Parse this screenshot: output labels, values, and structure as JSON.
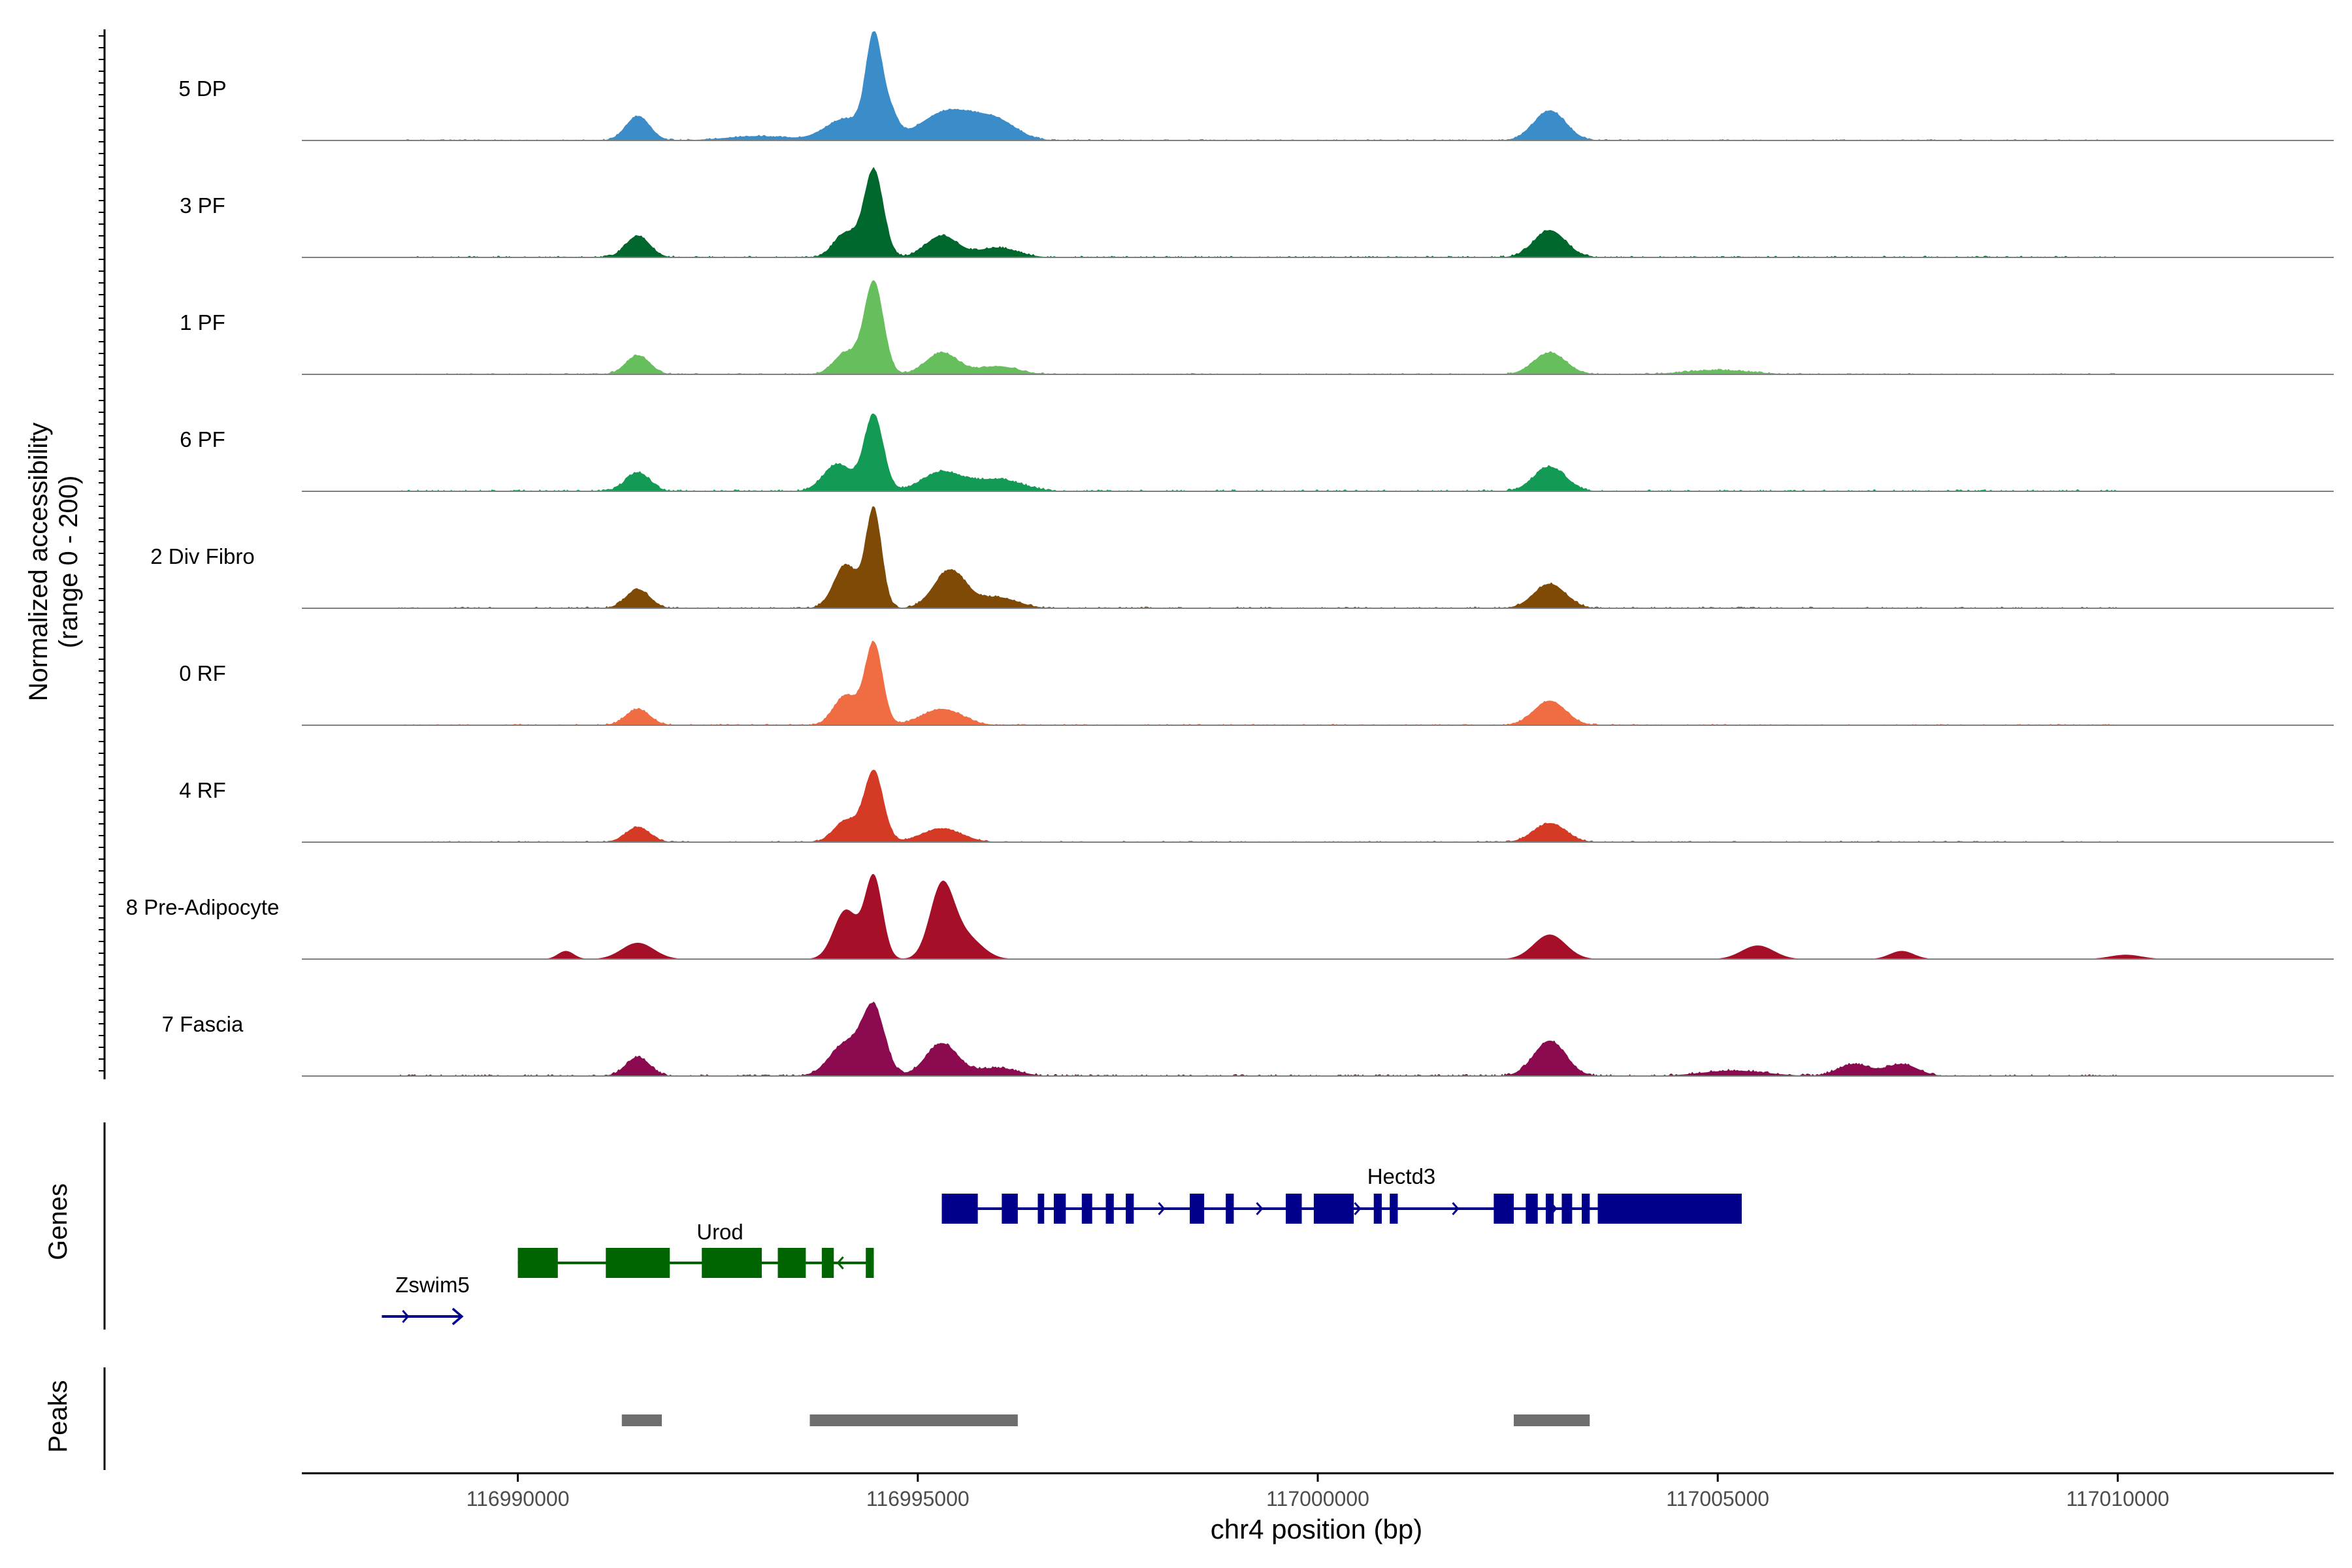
{
  "chart_data": {
    "type": "area",
    "title": "",
    "chromosome": "chr4",
    "xlabel": "chr4 position (bp)",
    "ylabel_line1": "Normalized accessibility",
    "ylabel_line2": "(range 0 - 200)",
    "y_range": [
      0,
      200
    ],
    "x_range": [
      116987300,
      117012700
    ],
    "x_ticks": [
      116990000,
      116995000,
      117000000,
      117005000,
      117010000
    ],
    "x_tick_labels": [
      "116990000",
      "116995000",
      "117000000",
      "117005000",
      "117010000"
    ],
    "tracks": [
      {
        "name": "5 DP",
        "color": "#3B8DC9",
        "peaks": [
          [
            116991500,
            45,
            150
          ],
          [
            116993000,
            8,
            400
          ],
          [
            116994100,
            40,
            250
          ],
          [
            116994450,
            180,
            100
          ],
          [
            116994650,
            45,
            100
          ],
          [
            116995400,
            55,
            350
          ],
          [
            116996000,
            30,
            250
          ],
          [
            117002900,
            55,
            200
          ]
        ],
        "noise_level": 5,
        "noise_start": 116988500,
        "noise_end": 117010000
      },
      {
        "name": "3 PF",
        "color": "#00682D",
        "peaks": [
          [
            116991500,
            40,
            150
          ],
          [
            116994100,
            45,
            150
          ],
          [
            116994450,
            160,
            120
          ],
          [
            116995300,
            40,
            200
          ],
          [
            116996000,
            18,
            250
          ],
          [
            117002900,
            50,
            200
          ]
        ],
        "noise_level": 6,
        "noise_start": 116988500,
        "noise_end": 117010000
      },
      {
        "name": "1 PF",
        "color": "#66BF5C",
        "peaks": [
          [
            116991500,
            35,
            150
          ],
          [
            116994100,
            40,
            150
          ],
          [
            116994450,
            170,
            120
          ],
          [
            116995300,
            40,
            200
          ],
          [
            116996000,
            15,
            250
          ],
          [
            117002900,
            40,
            200
          ],
          [
            117005000,
            8,
            400
          ]
        ],
        "noise_level": 5,
        "noise_start": 116988500,
        "noise_end": 117010000
      },
      {
        "name": "6 PF",
        "color": "#139B55",
        "peaks": [
          [
            116991500,
            35,
            150
          ],
          [
            116994000,
            50,
            180
          ],
          [
            116994450,
            140,
            120
          ],
          [
            116995300,
            35,
            250
          ],
          [
            116996000,
            22,
            300
          ],
          [
            117002900,
            45,
            200
          ]
        ],
        "noise_level": 7,
        "noise_start": 116988500,
        "noise_end": 117010000
      },
      {
        "name": "2 Div Fibro",
        "color": "#7F4A06",
        "peaks": [
          [
            116991500,
            35,
            150
          ],
          [
            116994100,
            80,
            150
          ],
          [
            116994450,
            180,
            100
          ],
          [
            116995400,
            70,
            200
          ],
          [
            116996000,
            20,
            250
          ],
          [
            117002900,
            45,
            200
          ]
        ],
        "noise_level": 6,
        "noise_start": 116988500,
        "noise_end": 117010000
      },
      {
        "name": "0 RF",
        "color": "#F06D43",
        "peaks": [
          [
            116991500,
            30,
            150
          ],
          [
            116994100,
            55,
            150
          ],
          [
            116994450,
            150,
            110
          ],
          [
            116995300,
            30,
            250
          ],
          [
            117002900,
            45,
            200
          ]
        ],
        "noise_level": 5,
        "noise_start": 116988500,
        "noise_end": 117010000
      },
      {
        "name": "4 RF",
        "color": "#D53A25",
        "peaks": [
          [
            116991500,
            28,
            150
          ],
          [
            116994100,
            40,
            150
          ],
          [
            116994450,
            130,
            120
          ],
          [
            116995300,
            25,
            250
          ],
          [
            117002900,
            35,
            200
          ]
        ],
        "noise_level": 5,
        "noise_start": 116988500,
        "noise_end": 117010000
      },
      {
        "name": "8 Pre-Adipocyte",
        "color": "#A50F28",
        "peaks": [
          [
            116990600,
            15,
            100
          ],
          [
            116991500,
            30,
            200
          ],
          [
            116994100,
            90,
            150
          ],
          [
            116994450,
            150,
            110
          ],
          [
            116995300,
            130,
            150
          ],
          [
            116995600,
            40,
            200
          ],
          [
            117002900,
            45,
            200
          ],
          [
            117005500,
            25,
            200
          ],
          [
            117007300,
            15,
            150
          ],
          [
            117010100,
            8,
            200
          ]
        ],
        "noise_level": 0,
        "noise_start": 116988500,
        "noise_end": 117010000
      },
      {
        "name": "7 Fascia",
        "color": "#8B0A50",
        "peaks": [
          [
            116991500,
            35,
            150
          ],
          [
            116994100,
            60,
            200
          ],
          [
            116994450,
            120,
            140
          ],
          [
            116995300,
            60,
            200
          ],
          [
            116996000,
            15,
            250
          ],
          [
            117002900,
            65,
            200
          ],
          [
            117006700,
            22,
            200
          ],
          [
            117007300,
            22,
            200
          ],
          [
            117005200,
            10,
            400
          ]
        ],
        "noise_level": 7,
        "noise_start": 116988500,
        "noise_end": 117010000
      }
    ],
    "genes_label": "Genes",
    "genes": [
      {
        "name": "Hectd3",
        "strand": "+",
        "color": "#00008B",
        "start": 116995300,
        "end": 117005300,
        "exons": [
          [
            116995300,
            116995750
          ],
          [
            116996050,
            116996250
          ],
          [
            116996500,
            116996580
          ],
          [
            116996700,
            116996850
          ],
          [
            116997050,
            116997180
          ],
          [
            116997350,
            116997450
          ],
          [
            116997600,
            116997700
          ],
          [
            116998400,
            116998580
          ],
          [
            116998850,
            116998950
          ],
          [
            116999600,
            116999800
          ],
          [
            116999950,
            117000450
          ],
          [
            117000700,
            117000800
          ],
          [
            117000900,
            117001000
          ],
          [
            117002200,
            117002450
          ],
          [
            117002600,
            117002750
          ],
          [
            117002850,
            117002950
          ],
          [
            117003050,
            117003180
          ],
          [
            117003300,
            117003400
          ],
          [
            117003500,
            117005300
          ]
        ]
      },
      {
        "name": "Urod",
        "strand": "-",
        "color": "#006400",
        "start": 116990000,
        "end": 116994450,
        "exons": [
          [
            116990000,
            116990500
          ],
          [
            116991100,
            116991900
          ],
          [
            116992300,
            116993050
          ],
          [
            116993250,
            116993600
          ],
          [
            116993800,
            116993950
          ],
          [
            116994350,
            116994450
          ]
        ]
      },
      {
        "name": "Zswim5",
        "strand": "+",
        "color": "#00008B",
        "start": 116988300,
        "end": 116989300,
        "exons": []
      }
    ],
    "peaks_label": "Peaks",
    "peak_regions": [
      [
        116991300,
        116991800
      ],
      [
        116993650,
        116996250
      ],
      [
        117002450,
        117003400
      ]
    ]
  }
}
